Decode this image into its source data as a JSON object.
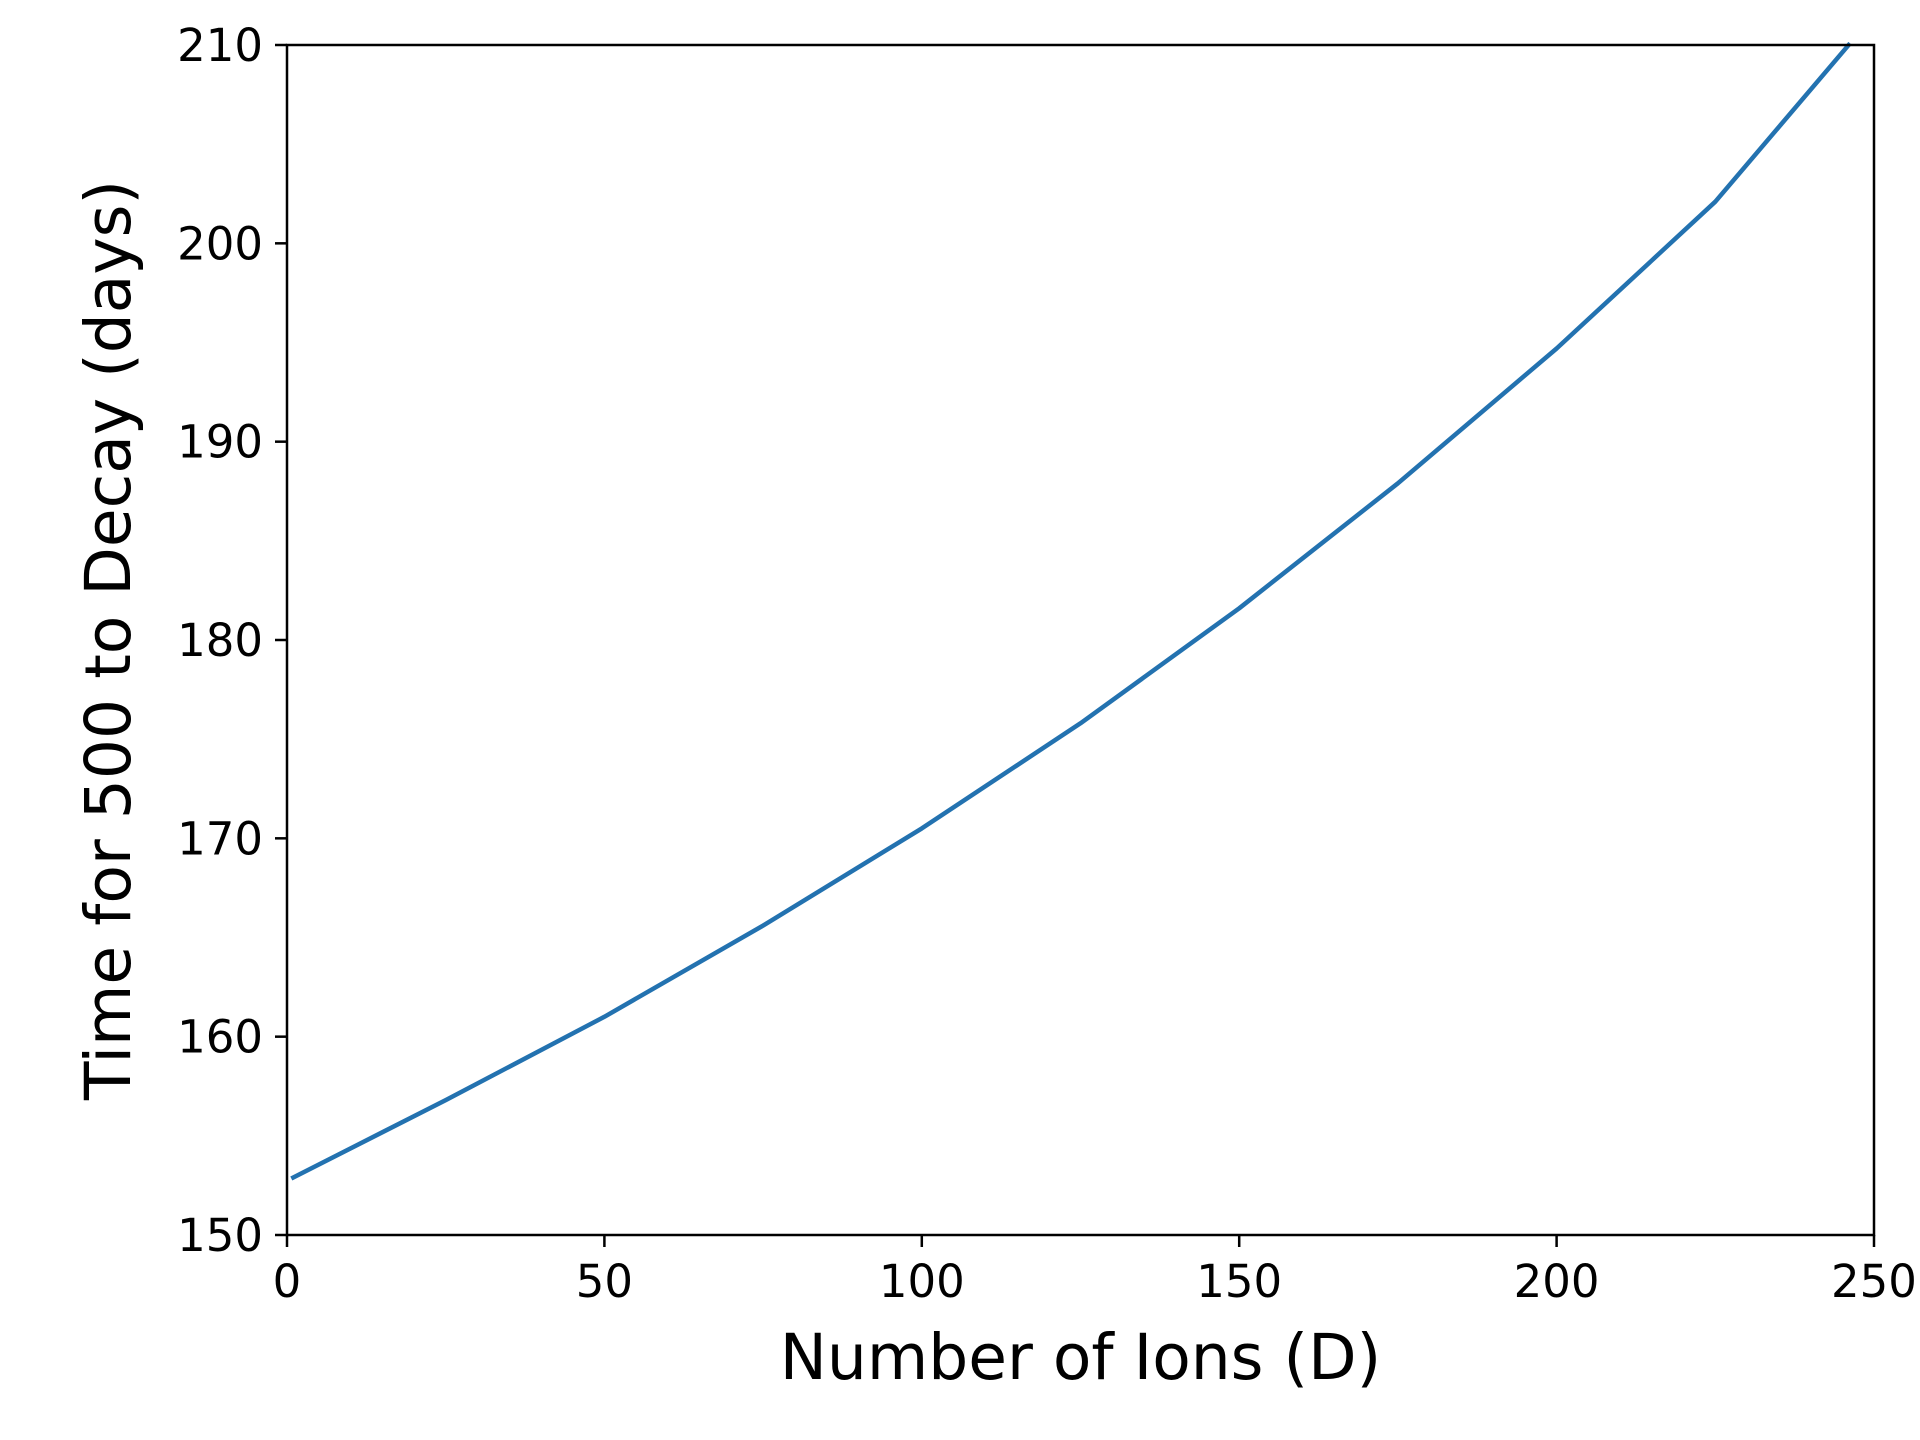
{
  "chart_data": {
    "type": "line",
    "title": "",
    "xlabel": "Number of Ions (D)",
    "ylabel": "Time for 500 to Decay (days)",
    "xlim": [
      0,
      250
    ],
    "ylim": [
      150,
      210
    ],
    "grid": false,
    "legend": "none",
    "x_ticks": [
      0,
      50,
      100,
      150,
      200,
      250
    ],
    "y_ticks": [
      150,
      160,
      170,
      180,
      190,
      200,
      210
    ],
    "x_tick_labels": [
      "0",
      "50",
      "100",
      "150",
      "200",
      "250"
    ],
    "y_tick_labels": [
      "150",
      "160",
      "170",
      "180",
      "190",
      "200",
      "210"
    ],
    "series": [
      {
        "color": "#2372b0",
        "x": [
          1,
          25,
          50,
          75,
          100,
          125,
          150,
          175,
          200,
          225,
          246
        ],
        "y": [
          152.9,
          156.8,
          161.0,
          165.6,
          170.5,
          175.8,
          181.6,
          187.9,
          194.7,
          202.1,
          210.0
        ]
      }
    ]
  }
}
